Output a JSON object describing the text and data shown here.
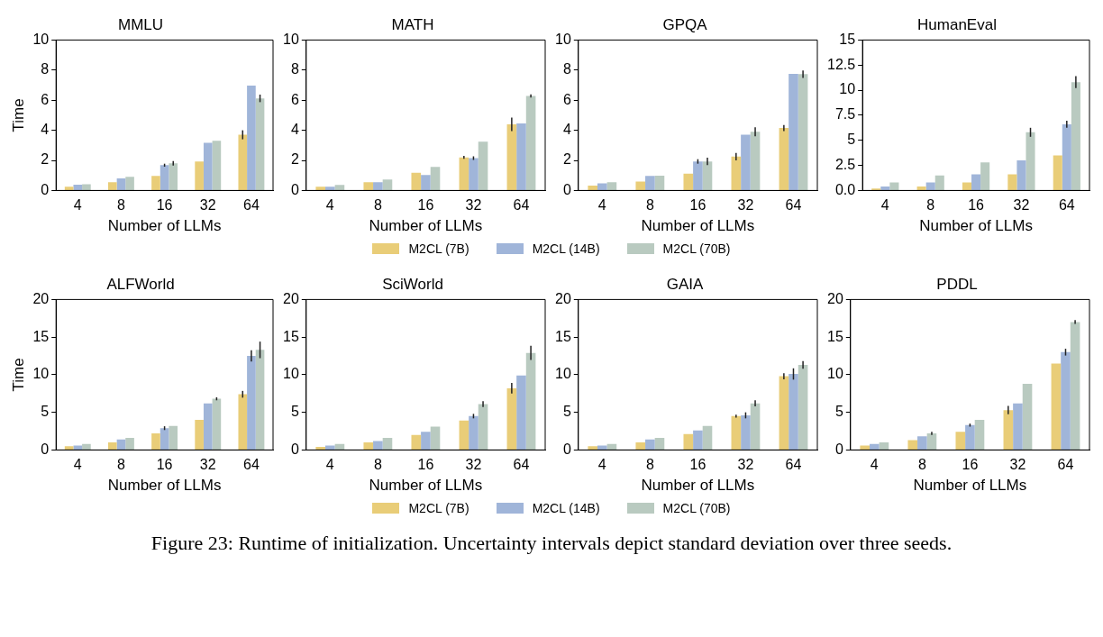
{
  "chart_data": [
    {
      "type": "bar",
      "title": "MMLU",
      "xlabel": "Number of LLMs",
      "ylabel": "Time",
      "categories": [
        "4",
        "8",
        "16",
        "32",
        "64"
      ],
      "ylim": [
        0,
        10
      ],
      "yticks": [
        0,
        2,
        4,
        6,
        8,
        10
      ],
      "grid": false,
      "series": [
        {
          "color": "#e9cd78",
          "values": [
            0.25,
            0.55,
            0.97,
            1.92,
            3.7
          ],
          "errors": [
            null,
            null,
            null,
            null,
            0.3
          ]
        },
        {
          "color": "#a0b5d9",
          "values": [
            0.38,
            0.8,
            1.68,
            3.17,
            6.97
          ],
          "errors": [
            null,
            null,
            0.1,
            null,
            null
          ]
        },
        {
          "color": "#b9cac0",
          "values": [
            0.42,
            0.9,
            1.8,
            3.3,
            6.12
          ],
          "errors": [
            null,
            null,
            0.15,
            null,
            0.25
          ]
        }
      ]
    },
    {
      "type": "bar",
      "title": "MATH",
      "xlabel": "Number of LLMs",
      "categories": [
        "4",
        "8",
        "16",
        "32",
        "64"
      ],
      "ylim": [
        0,
        10
      ],
      "yticks": [
        0,
        2,
        4,
        6,
        8,
        10
      ],
      "grid": false,
      "legend": "bottom",
      "series": [
        {
          "name": "M2CL (7B)",
          "color": "#e9cd78",
          "values": [
            0.25,
            0.55,
            1.17,
            2.2,
            4.4
          ],
          "errors": [
            null,
            null,
            null,
            0.1,
            0.45
          ]
        },
        {
          "name": "M2CL (14B)",
          "color": "#a0b5d9",
          "values": [
            0.25,
            0.55,
            1.02,
            2.15,
            4.45
          ],
          "errors": [
            null,
            null,
            null,
            0.12,
            null
          ]
        },
        {
          "name": "M2CL (70B)",
          "color": "#b9cac0",
          "values": [
            0.37,
            0.73,
            1.57,
            3.25,
            6.28
          ],
          "errors": [
            null,
            null,
            null,
            null,
            0.1
          ]
        }
      ]
    },
    {
      "type": "bar",
      "title": "GPQA",
      "xlabel": "Number of LLMs",
      "categories": [
        "4",
        "8",
        "16",
        "32",
        "64"
      ],
      "ylim": [
        0,
        10
      ],
      "yticks": [
        0,
        2,
        4,
        6,
        8,
        10
      ],
      "grid": false,
      "series": [
        {
          "color": "#e9cd78",
          "values": [
            0.32,
            0.6,
            1.12,
            2.25,
            4.15
          ],
          "errors": [
            null,
            null,
            null,
            0.25,
            0.2
          ]
        },
        {
          "color": "#a0b5d9",
          "values": [
            0.47,
            0.97,
            1.93,
            3.7,
            7.75
          ],
          "errors": [
            null,
            null,
            0.15,
            null,
            null
          ]
        },
        {
          "color": "#b9cac0",
          "values": [
            0.55,
            0.98,
            1.93,
            3.9,
            7.73
          ],
          "errors": [
            null,
            null,
            0.25,
            0.3,
            0.25
          ]
        }
      ]
    },
    {
      "type": "bar",
      "title": "HumanEval",
      "xlabel": "Number of LLMs",
      "categories": [
        "4",
        "8",
        "16",
        "32",
        "64"
      ],
      "ylim": [
        0,
        15
      ],
      "yticks": [
        {
          "value": 0,
          "label": "0.0"
        },
        2.5,
        5,
        7.5,
        10,
        12.5,
        15
      ],
      "grid": false,
      "series": [
        {
          "color": "#e9cd78",
          "values": [
            0.2,
            0.4,
            0.8,
            1.6,
            3.5
          ],
          "errors": [
            null,
            null,
            null,
            null,
            null
          ]
        },
        {
          "color": "#a0b5d9",
          "values": [
            0.4,
            0.8,
            1.6,
            3.0,
            6.6
          ],
          "errors": [
            null,
            null,
            null,
            null,
            0.35
          ]
        },
        {
          "color": "#b9cac0",
          "values": [
            0.8,
            1.5,
            2.8,
            5.8,
            10.8
          ],
          "errors": [
            null,
            null,
            null,
            0.45,
            0.6
          ]
        }
      ]
    },
    {
      "type": "bar",
      "title": "ALFWorld",
      "xlabel": "Number of LLMs",
      "ylabel": "Time",
      "categories": [
        "4",
        "8",
        "16",
        "32",
        "64"
      ],
      "ylim": [
        0,
        20
      ],
      "yticks": [
        0,
        5,
        10,
        15,
        20
      ],
      "grid": false,
      "series": [
        {
          "color": "#e9cd78",
          "values": [
            0.5,
            1.0,
            2.2,
            4.0,
            7.4
          ],
          "errors": [
            null,
            null,
            null,
            null,
            0.45
          ]
        },
        {
          "color": "#a0b5d9",
          "values": [
            0.6,
            1.4,
            2.9,
            6.2,
            12.5
          ],
          "errors": [
            null,
            null,
            0.25,
            null,
            0.75
          ]
        },
        {
          "color": "#b9cac0",
          "values": [
            0.8,
            1.6,
            3.2,
            6.8,
            13.3
          ],
          "errors": [
            null,
            null,
            null,
            0.2,
            1.1
          ]
        }
      ]
    },
    {
      "type": "bar",
      "title": "SciWorld",
      "xlabel": "Number of LLMs",
      "categories": [
        "4",
        "8",
        "16",
        "32",
        "64"
      ],
      "ylim": [
        0,
        20
      ],
      "yticks": [
        0,
        5,
        10,
        15,
        20
      ],
      "grid": false,
      "legend": "bottom",
      "series": [
        {
          "name": "M2CL (7B)",
          "color": "#e9cd78",
          "values": [
            0.4,
            1.0,
            2.0,
            3.9,
            8.2
          ],
          "errors": [
            null,
            null,
            null,
            null,
            0.7
          ]
        },
        {
          "name": "M2CL (14B)",
          "color": "#a0b5d9",
          "values": [
            0.6,
            1.2,
            2.4,
            4.5,
            9.9
          ],
          "errors": [
            null,
            null,
            null,
            0.3,
            null
          ]
        },
        {
          "name": "M2CL (70B)",
          "color": "#b9cac0",
          "values": [
            0.8,
            1.6,
            3.1,
            6.1,
            12.9
          ],
          "errors": [
            null,
            null,
            null,
            0.4,
            0.95
          ]
        }
      ]
    },
    {
      "type": "bar",
      "title": "GAIA",
      "xlabel": "Number of LLMs",
      "categories": [
        "4",
        "8",
        "16",
        "32",
        "64"
      ],
      "ylim": [
        0,
        20
      ],
      "yticks": [
        0,
        5,
        10,
        15,
        20
      ],
      "grid": false,
      "series": [
        {
          "color": "#e9cd78",
          "values": [
            0.5,
            1.0,
            2.1,
            4.5,
            9.8
          ],
          "errors": [
            null,
            null,
            null,
            0.2,
            0.4
          ]
        },
        {
          "color": "#a0b5d9",
          "values": [
            0.6,
            1.4,
            2.6,
            4.6,
            10.1
          ],
          "errors": [
            null,
            null,
            null,
            0.4,
            0.75
          ]
        },
        {
          "color": "#b9cac0",
          "values": [
            0.8,
            1.6,
            3.2,
            6.2,
            11.3
          ],
          "errors": [
            null,
            null,
            null,
            0.4,
            0.5
          ]
        }
      ]
    },
    {
      "type": "bar",
      "title": "PDDL",
      "xlabel": "Number of LLMs",
      "categories": [
        "4",
        "8",
        "16",
        "32",
        "64"
      ],
      "ylim": [
        0,
        20
      ],
      "yticks": [
        0,
        5,
        10,
        15,
        20
      ],
      "grid": false,
      "annotations": [
        "Figure 23: Runtime of initialization. Uncertainty intervals depict standard deviation over three seeds."
      ],
      "series": [
        {
          "color": "#e9cd78",
          "values": [
            0.6,
            1.3,
            2.4,
            5.3,
            11.5
          ],
          "errors": [
            null,
            null,
            null,
            0.55,
            null
          ]
        },
        {
          "color": "#a0b5d9",
          "values": [
            0.8,
            1.8,
            3.3,
            6.2,
            13.0
          ],
          "errors": [
            null,
            null,
            0.2,
            null,
            0.45
          ]
        },
        {
          "color": "#b9cac0",
          "values": [
            1.0,
            2.2,
            4.0,
            8.8,
            17.0
          ],
          "errors": [
            null,
            0.2,
            null,
            null,
            0.25
          ]
        }
      ]
    }
  ]
}
